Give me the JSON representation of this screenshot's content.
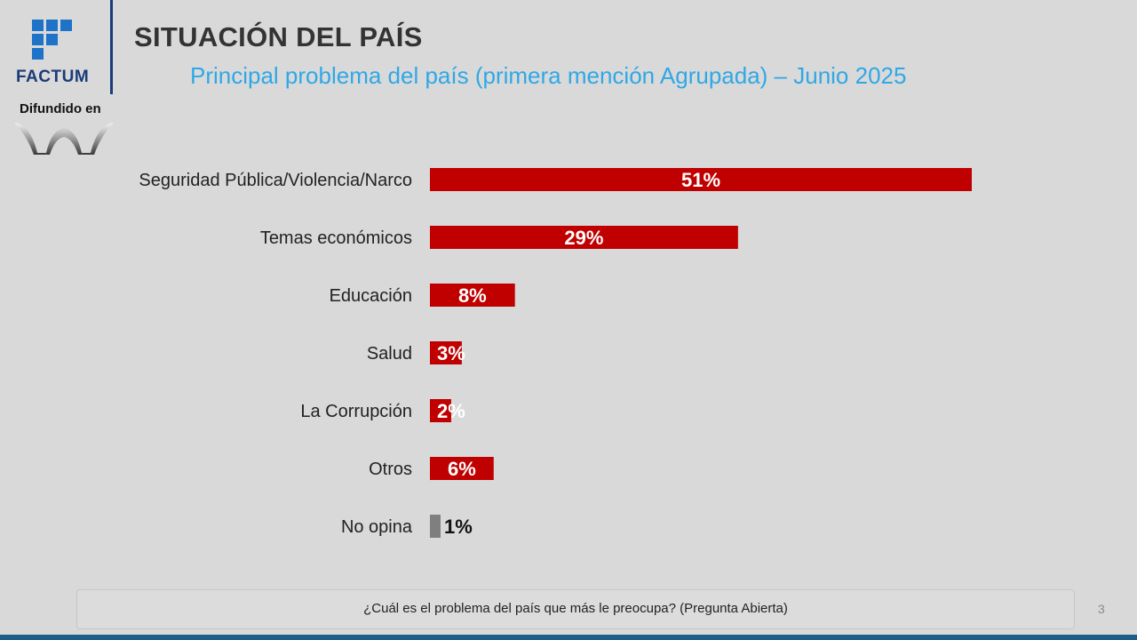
{
  "brand": {
    "name": "FACTUM",
    "difundido": "Difundido en",
    "primary_color": "#1a3c7a",
    "mark_color": "#1e72c8"
  },
  "header": {
    "title": "SITUACIÓN DEL PAÍS",
    "subtitle": "Principal problema del país (primera mención Agrupada) – Junio 2025",
    "subtitle_color": "#2fa8e6"
  },
  "chart_data": {
    "type": "bar",
    "orientation": "horizontal",
    "title": "Principal problema del país (primera mención Agrupada) – Junio 2025",
    "categories": [
      "Seguridad Pública/Violencia/Narco",
      "Temas económicos",
      "Educación",
      "Salud",
      "La Corrupción",
      "Otros",
      "No opina"
    ],
    "values": [
      51,
      29,
      8,
      3,
      2,
      6,
      1
    ],
    "labels": [
      "51%",
      "29%",
      "8%",
      "3%",
      "2%",
      "6%",
      "1%"
    ],
    "colors": [
      "#c00000",
      "#c00000",
      "#c00000",
      "#c00000",
      "#c00000",
      "#c00000",
      "#7f7f7f"
    ],
    "xlim": [
      0,
      51
    ],
    "xlabel": "",
    "ylabel": ""
  },
  "footer": {
    "question": "¿Cuál es el problema del país que más le preocupa? (Pregunta Abierta)",
    "page": "3"
  }
}
